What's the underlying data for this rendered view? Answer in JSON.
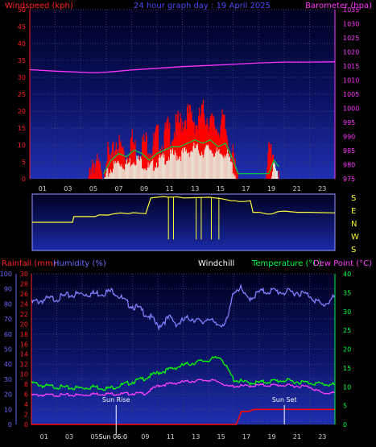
{
  "header": {
    "left_label": "Windspeed (kph)",
    "center_label": "24 hour graph day : 19 April 2025",
    "right_label": "Barometer (hpa)"
  },
  "colors": {
    "background": "#000000",
    "axis_red": "#ff2020",
    "axis_magenta": "#ff33ff",
    "axis_green": "#00ff44",
    "axis_blue": "#6a6aff",
    "title_blue": "#4a4aff",
    "grid": "#3a3a7a",
    "panel_top_dark": "#000033",
    "panel_bottom_blue": "#1f2fb0",
    "wind_red": "#ff0000",
    "wind_green": "#00d040",
    "wind_white": "#e8fff0",
    "direction_yellow": "#ffff33",
    "humidity": "#8080ff",
    "temperature": "#00ff00",
    "dewpoint": "#ff40ff",
    "rain": "#ff0000"
  },
  "x_axis": {
    "tick_labels": [
      "01",
      "03",
      "05",
      "07",
      "09",
      "11",
      "13",
      "15",
      "17",
      "19",
      "21",
      "23"
    ],
    "hour_range": [
      0,
      24
    ]
  },
  "wind_direction": {
    "labels": [
      "S",
      "E",
      "N",
      "W",
      "S"
    ]
  },
  "lower_header": {
    "rainfall": "Rainfall (mm)",
    "humidity": "Humidity (%)",
    "windchill": "Windchill",
    "temperature": "Temperature (°C)",
    "dewpoint": "Dew Point (°C)"
  },
  "annotations": {
    "sunrise": "Sun Rise",
    "sunrise_time": "Sun 06:0",
    "sunset": "Sun Set",
    "sunrise_hour": 6.7,
    "sunset_hour": 20.0
  },
  "chart_data": [
    {
      "type": "line",
      "title": "24 hour graph day : 19 April 2025",
      "ylabel": "Windspeed (kph)",
      "y2label": "Barometer (hpa)",
      "ylim": [
        0,
        50
      ],
      "y2lim": [
        975,
        1035
      ],
      "yticks": [
        0,
        5,
        10,
        15,
        20,
        25,
        30,
        35,
        40,
        45,
        50
      ],
      "y2ticks": [
        975,
        980,
        985,
        990,
        995,
        1000,
        1005,
        1010,
        1015,
        1020,
        1025,
        1030,
        1035
      ],
      "xlim": [
        0,
        24
      ],
      "grid": true,
      "series": [
        {
          "name": "Barometer (hpa)",
          "axis": "right",
          "x": [
            0,
            2,
            4,
            5,
            6,
            7,
            8,
            10,
            12,
            14,
            16,
            18,
            20,
            22,
            24
          ],
          "values": [
            1013.7,
            1013.2,
            1012.8,
            1012.6,
            1012.8,
            1013.2,
            1013.6,
            1014.2,
            1014.8,
            1015.2,
            1015.6,
            1016.1,
            1016.4,
            1016.4,
            1016.5
          ]
        },
        {
          "name": "Wind gust (kph)",
          "axis": "left",
          "x": [
            0,
            4.6,
            4.9,
            5.2,
            5.5,
            5.7,
            6.0,
            6.4,
            6.8,
            7.2,
            7.6,
            8.0,
            8.4,
            8.8,
            9.2,
            9.6,
            10.0,
            10.4,
            10.8,
            11.2,
            11.6,
            12.0,
            12.4,
            12.8,
            13.2,
            13.6,
            14.0,
            14.4,
            14.8,
            15.2,
            15.6,
            16.0,
            16.3,
            16.6,
            18.6,
            18.8,
            19.0,
            19.2,
            19.4,
            19.6,
            24
          ],
          "values": [
            0,
            0,
            8,
            6,
            5,
            0,
            10,
            7,
            13,
            11,
            9,
            14,
            10,
            12,
            13,
            11,
            15,
            12,
            17,
            15,
            18,
            19,
            21,
            20,
            18,
            22,
            20,
            18,
            17,
            19,
            14,
            8,
            2,
            0,
            0,
            10,
            11,
            9,
            4,
            0,
            0
          ]
        },
        {
          "name": "Wind average (kph)",
          "axis": "left",
          "x": [
            0,
            5.8,
            6.4,
            7.0,
            7.6,
            8.2,
            8.8,
            9.4,
            10.0,
            10.6,
            11.2,
            11.8,
            12.4,
            13.0,
            13.6,
            14.2,
            14.8,
            15.4,
            16.0,
            16.4,
            18.8,
            19.2,
            19.6,
            24
          ],
          "values": [
            0,
            0,
            4,
            6,
            5,
            7,
            6,
            4,
            6,
            7,
            8,
            8,
            9,
            10,
            9,
            10,
            8,
            9,
            4,
            0,
            0,
            4,
            2,
            0
          ]
        }
      ]
    },
    {
      "type": "line",
      "title": "",
      "ylabel": "Wind direction",
      "y_categories": [
        "S",
        "E",
        "N",
        "W",
        "S"
      ],
      "xlim": [
        0,
        24
      ],
      "series": [
        {
          "name": "Wind direction",
          "x": [
            0,
            3.2,
            3.3,
            5.0,
            5.3,
            6.0,
            6.4,
            7.0,
            7.6,
            8.0,
            8.6,
            9.0,
            9.4,
            10.4,
            10.8,
            11.5,
            12.0,
            13.0,
            14.0,
            15.0,
            15.8,
            16.1,
            16.4,
            16.8,
            17.3,
            17.5,
            18.0,
            18.6,
            19.0,
            19.5,
            20.0,
            21.0,
            22.0,
            24
          ],
          "values": [
            180,
            180,
            220,
            220,
            232,
            230,
            238,
            245,
            240,
            247,
            243,
            240,
            350,
            360,
            355,
            358,
            350,
            352,
            355,
            345,
            330,
            330,
            325,
            325,
            330,
            250,
            250,
            238,
            238,
            255,
            258,
            250,
            250,
            246
          ]
        }
      ]
    },
    {
      "type": "line",
      "title": "",
      "ylabel": "Humidity (%)",
      "y2label": "Temperature (°C)",
      "ylim": [
        0,
        100
      ],
      "y2lim": [
        0,
        40
      ],
      "yticks": [
        0,
        10,
        20,
        30,
        40,
        50,
        60,
        70,
        80,
        90,
        100
      ],
      "rain_ticks": [
        0,
        2,
        4,
        6,
        8,
        10,
        12,
        14,
        16,
        18,
        20,
        22,
        24,
        26,
        28,
        30
      ],
      "y2ticks": [
        0,
        5,
        10,
        15,
        20,
        25,
        30,
        35,
        40
      ],
      "xlim": [
        0,
        24
      ],
      "grid": true,
      "series": [
        {
          "name": "Humidity (%)",
          "axis": "humidity",
          "x": [
            0,
            1,
            2,
            3,
            4,
            5,
            6,
            6.5,
            7,
            7.5,
            8,
            8.5,
            9,
            9.5,
            10,
            10.5,
            11,
            11.5,
            12,
            12.5,
            13,
            13.5,
            14,
            14.5,
            15,
            15.5,
            16,
            16.5,
            17,
            17.5,
            18,
            19,
            20,
            21,
            22,
            23,
            23.5,
            24
          ],
          "values": [
            82,
            84,
            85,
            87,
            88,
            88,
            89,
            90,
            86,
            82,
            80,
            78,
            75,
            72,
            66,
            70,
            72,
            68,
            70,
            72,
            71,
            68,
            73,
            67,
            68,
            70,
            90,
            92,
            85,
            86,
            89,
            90,
            89,
            89,
            87,
            80,
            83,
            86
          ]
        },
        {
          "name": "Temperature (°C)",
          "axis": "temperature",
          "x": [
            0,
            1,
            2,
            3,
            4,
            5,
            6,
            7,
            8,
            9,
            10,
            11,
            12,
            13,
            14,
            15,
            15.5,
            16,
            17,
            18,
            19,
            20,
            21,
            22,
            23,
            24
          ],
          "values": [
            11.4,
            10.5,
            10.3,
            10.0,
            10.0,
            10.3,
            9.8,
            10.6,
            11.6,
            12.6,
            14.0,
            15.0,
            16.0,
            16.8,
            17.4,
            18.2,
            15.0,
            12.2,
            11.4,
            11.4,
            11.8,
            12.0,
            11.6,
            11.4,
            11.0,
            10.8
          ]
        },
        {
          "name": "Dew Point (°C)",
          "axis": "temperature",
          "x": [
            0,
            1,
            2,
            3,
            4,
            5,
            6,
            7,
            8,
            9,
            10,
            11,
            12,
            13,
            14,
            15,
            15.5,
            16,
            17,
            18,
            19,
            20,
            21,
            22,
            23,
            24
          ],
          "values": [
            8.0,
            8.0,
            8.0,
            8.0,
            8.0,
            8.3,
            8.3,
            8.3,
            8.4,
            8.4,
            10.5,
            11.0,
            11.5,
            11.8,
            12.0,
            11.4,
            10.2,
            10.4,
            10.4,
            10.6,
            10.6,
            10.6,
            10.4,
            10.2,
            8.5,
            8.6
          ]
        },
        {
          "name": "Rainfall (mm)",
          "axis": "rain",
          "x": [
            0,
            16.2,
            16.6,
            17.2,
            17.6,
            18.0,
            24
          ],
          "values": [
            0,
            0,
            2.6,
            2.6,
            3.0,
            3.0,
            3.0
          ]
        }
      ]
    }
  ]
}
